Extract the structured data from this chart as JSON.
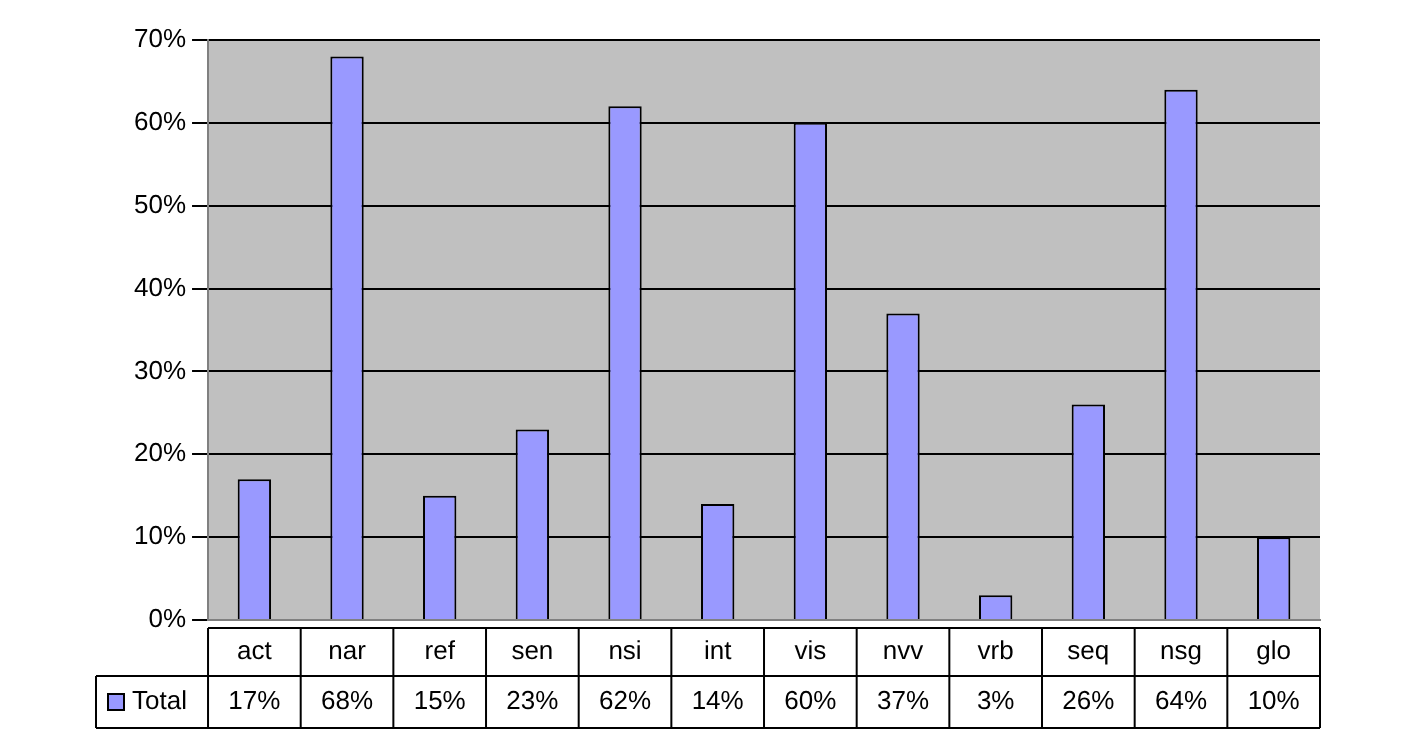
{
  "chart_data": {
    "type": "bar",
    "categories": [
      "act",
      "nar",
      "ref",
      "sen",
      "nsi",
      "int",
      "vis",
      "nvv",
      "vrb",
      "seq",
      "nsg",
      "glo"
    ],
    "series": [
      {
        "name": "Total",
        "color": "#9999ff",
        "values": [
          17,
          68,
          15,
          23,
          62,
          14,
          60,
          37,
          3,
          26,
          64,
          10
        ]
      }
    ],
    "ylim": [
      0,
      70
    ],
    "yticks": [
      {
        "value": 0,
        "label": "0%"
      },
      {
        "value": 10,
        "label": "10%"
      },
      {
        "value": 20,
        "label": "20%"
      },
      {
        "value": 30,
        "label": "30%"
      },
      {
        "value": 40,
        "label": "40%"
      },
      {
        "value": 50,
        "label": "50%"
      },
      {
        "value": 60,
        "label": "60%"
      },
      {
        "value": 70,
        "label": "70%"
      }
    ],
    "value_labels": [
      "17%",
      "68%",
      "15%",
      "23%",
      "62%",
      "14%",
      "60%",
      "37%",
      "3%",
      "26%",
      "64%",
      "10%"
    ],
    "grid": "y",
    "legend": "bottom"
  }
}
